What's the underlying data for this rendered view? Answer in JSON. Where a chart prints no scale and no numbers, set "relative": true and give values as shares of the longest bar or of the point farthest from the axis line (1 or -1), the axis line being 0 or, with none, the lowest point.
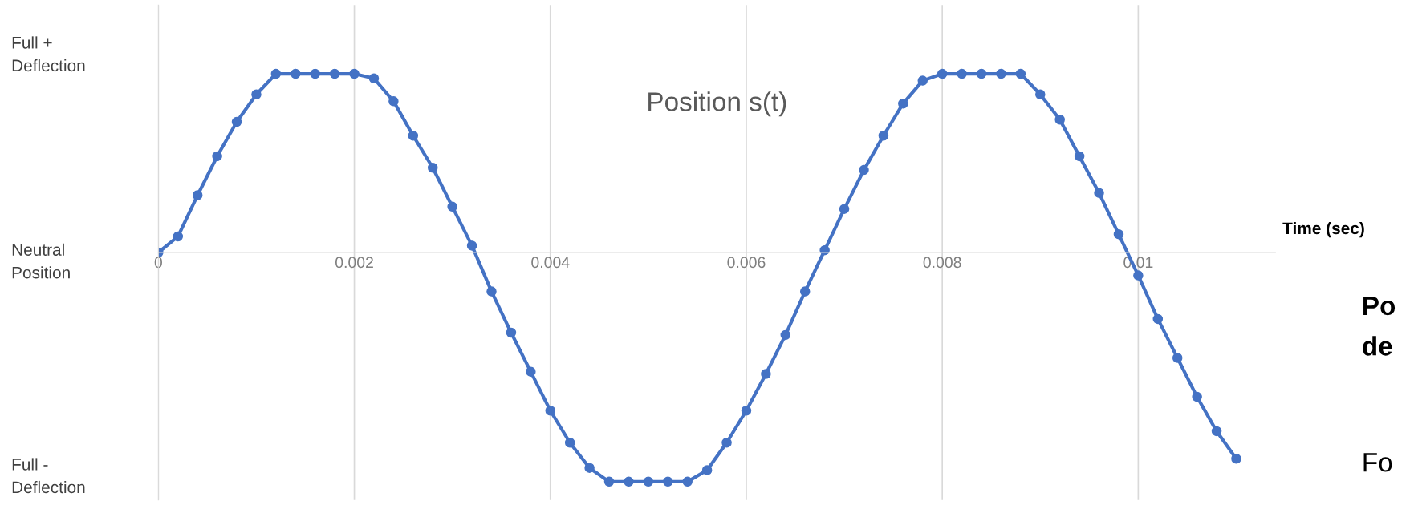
{
  "chart_data": {
    "type": "line",
    "title": "Position s(t)",
    "xlabel": "Time (sec)",
    "relative": true,
    "x": [
      0,
      0.0002,
      0.0004,
      0.0006,
      0.0008,
      0.001,
      0.0012,
      0.0014,
      0.0016,
      0.0018,
      0.002,
      0.0022,
      0.0024,
      0.0026,
      0.0028,
      0.003,
      0.0032,
      0.0034,
      0.0036,
      0.0038,
      0.004,
      0.0042,
      0.0044,
      0.0046,
      0.0048,
      0.005,
      0.0052,
      0.0054,
      0.0056,
      0.0058,
      0.006,
      0.0062,
      0.0064,
      0.0066,
      0.0068,
      0.007,
      0.0072,
      0.0074,
      0.0076,
      0.0078,
      0.008,
      0.0082,
      0.0084,
      0.0086,
      0.0088,
      0.009,
      0.0092,
      0.0094,
      0.0096,
      0.0098,
      0.01,
      0.0102,
      0.0104,
      0.0106,
      0.0108,
      0.011
    ],
    "series": [
      {
        "color": "#4472c4",
        "values": [
          0,
          0.07,
          0.25,
          0.42,
          0.57,
          0.69,
          0.78,
          0.78,
          0.78,
          0.78,
          0.78,
          0.76,
          0.66,
          0.51,
          0.37,
          0.2,
          0.03,
          -0.17,
          -0.35,
          -0.52,
          -0.69,
          -0.83,
          -0.94,
          -1,
          -1,
          -1,
          -1,
          -1,
          -0.95,
          -0.83,
          -0.69,
          -0.53,
          -0.36,
          -0.17,
          0.01,
          0.19,
          0.36,
          0.51,
          0.65,
          0.75,
          0.78,
          0.78,
          0.78,
          0.78,
          0.78,
          0.69,
          0.58,
          0.42,
          0.26,
          0.08,
          -0.1,
          -0.29,
          -0.46,
          -0.63,
          -0.78,
          -0.9
        ]
      }
    ],
    "xlim": [
      0,
      0.0114
    ],
    "xticks": [
      0,
      0.002,
      0.004,
      0.006,
      0.008,
      0.01
    ],
    "grid": "x",
    "marker": "circle",
    "line_style": "solid",
    "annotations": [
      "Full +\nDeflection",
      "Neutral\nPosition",
      "Full -\nDeflection",
      "Po",
      "de",
      "Fo"
    ]
  }
}
